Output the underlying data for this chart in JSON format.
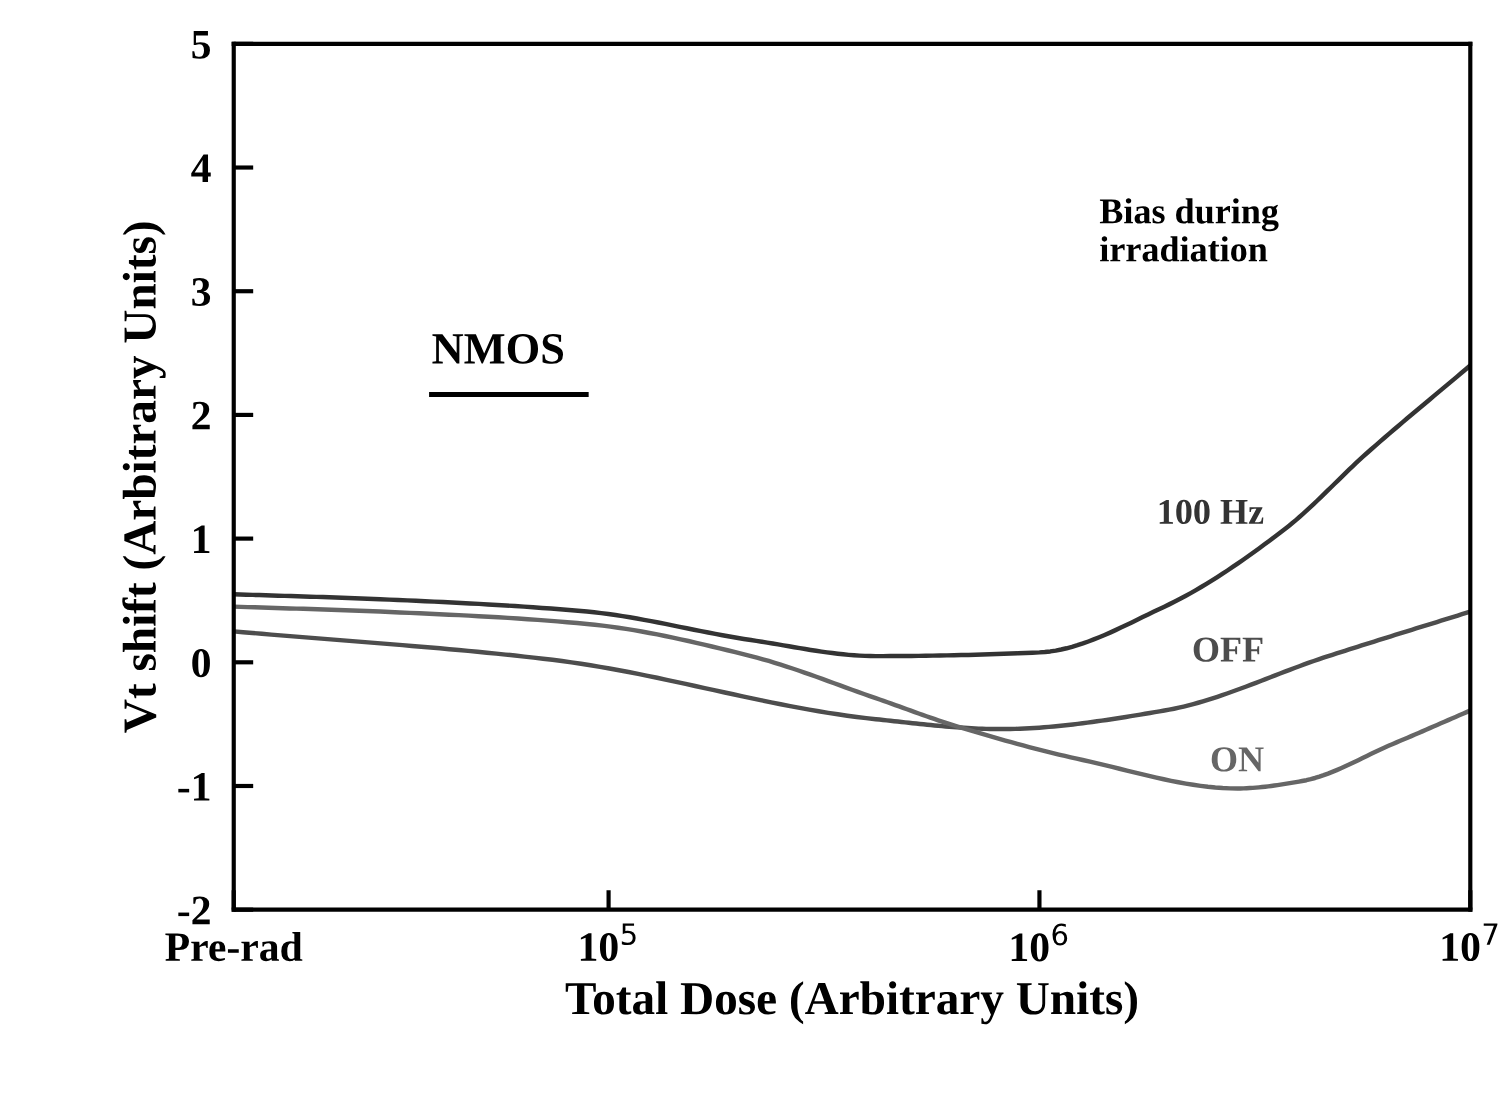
{
  "chart_data": {
    "type": "line",
    "xlabel": "Total Dose (Arbitrary Units)",
    "ylabel": "Vt shift (Arbitrary Units)",
    "log": "x",
    "xlim": [
      13490,
      10000000
    ],
    "xticks": [
      {
        "value": 13490,
        "label": "Pre-rad"
      },
      {
        "value": 100000,
        "label": "10$^{5}$"
      },
      {
        "value": 1000000,
        "label": "10$^{6}$"
      },
      {
        "value": 10000000,
        "label": "10$^{7}$"
      }
    ],
    "ylim": [
      -2,
      5
    ],
    "yticks": [
      -2,
      -1,
      0,
      1,
      2,
      3,
      4,
      5
    ],
    "grid": false,
    "legend": false,
    "marker": "none",
    "line_style": "solid",
    "annotations": [
      "NMOS",
      "Bias during irradiation"
    ],
    "series": [
      {
        "name": "100 Hz",
        "color": "#333333",
        "x": [
          13490,
          29500,
          89100,
          214000,
          417000,
          1000000,
          1950000,
          3720000,
          5750000,
          10000000
        ],
        "values": [
          0.55,
          0.51,
          0.41,
          0.18,
          0.05,
          0.08,
          0.45,
          1.08,
          1.69,
          2.4
        ]
      },
      {
        "name": "OFF",
        "color": "#4d4d4d",
        "x": [
          13490,
          74100,
          417000,
          813000,
          1950000,
          4680000,
          10000000
        ],
        "values": [
          0.25,
          0.02,
          -0.46,
          -0.54,
          -0.39,
          0.05,
          0.41
        ]
      },
      {
        "name": "ON",
        "color": "#666666",
        "x": [
          13490,
          29500,
          89100,
          214000,
          417000,
          646000,
          1260000,
          2880000,
          4070000,
          6610000,
          10000000
        ],
        "values": [
          0.45,
          0.41,
          0.31,
          0.05,
          -0.29,
          -0.52,
          -0.79,
          -1.02,
          -0.96,
          -0.66,
          -0.39
        ]
      }
    ]
  }
}
